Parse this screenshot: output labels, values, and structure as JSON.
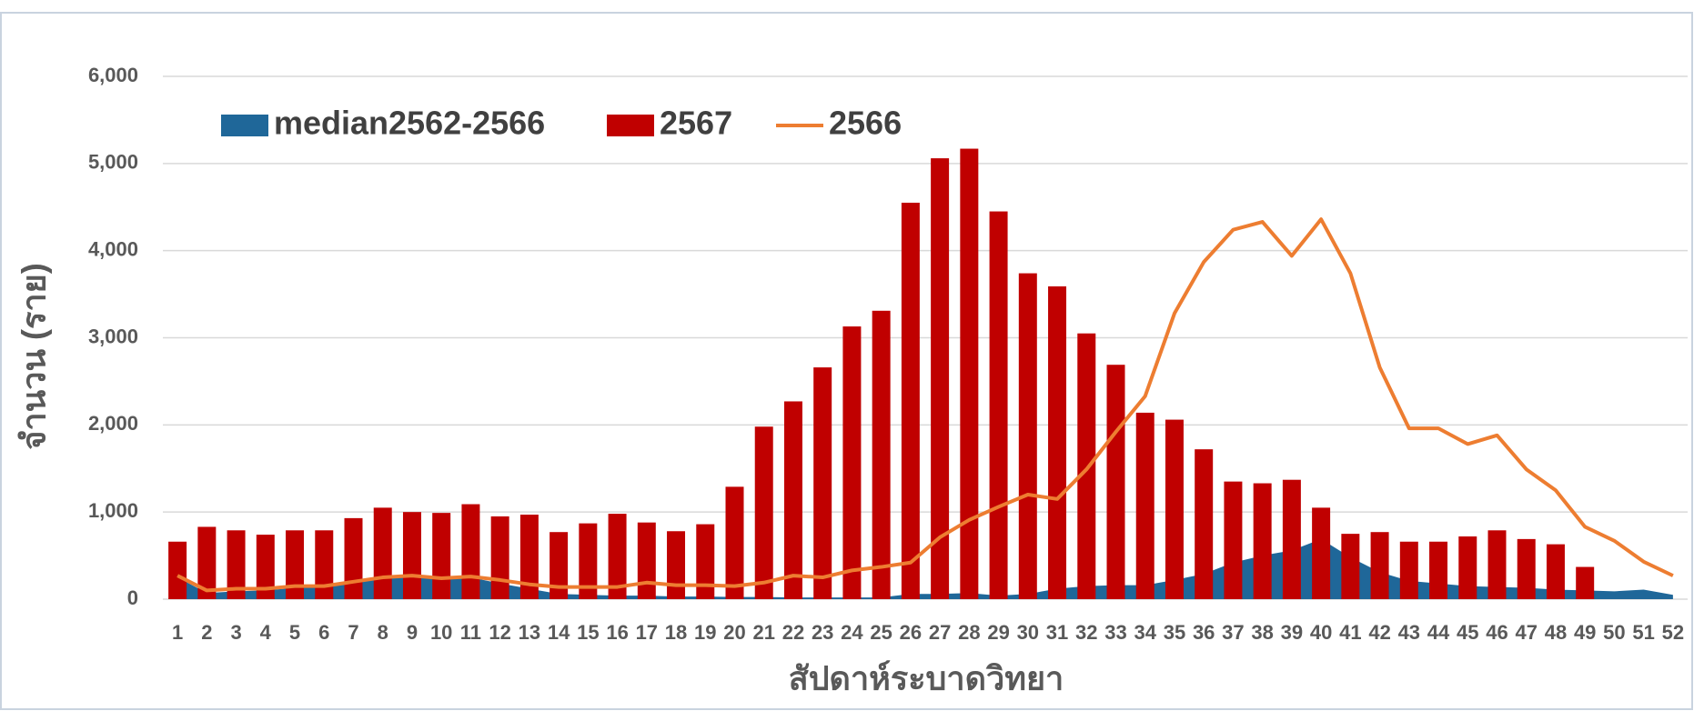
{
  "chart_data": {
    "type": "bar-area-line",
    "x_label": "สัปดาห์ระบาดวิทยา",
    "y_label": "จำนวน (ราย)",
    "categories": [
      "1",
      "2",
      "3",
      "4",
      "5",
      "6",
      "7",
      "8",
      "9",
      "10",
      "11",
      "12",
      "13",
      "14",
      "15",
      "16",
      "17",
      "18",
      "19",
      "20",
      "21",
      "22",
      "23",
      "24",
      "25",
      "26",
      "27",
      "28",
      "29",
      "30",
      "31",
      "32",
      "33",
      "34",
      "35",
      "36",
      "37",
      "38",
      "39",
      "40",
      "41",
      "42",
      "43",
      "44",
      "45",
      "46",
      "47",
      "48",
      "49",
      "50",
      "51",
      "52"
    ],
    "series": [
      {
        "name": "median2562-2566",
        "kind": "area",
        "color": "#1f6799",
        "values": [
          250,
          70,
          90,
          100,
          130,
          150,
          200,
          250,
          260,
          230,
          250,
          180,
          120,
          60,
          50,
          40,
          40,
          30,
          30,
          25,
          25,
          20,
          20,
          20,
          20,
          60,
          60,
          70,
          40,
          60,
          120,
          150,
          160,
          160,
          220,
          290,
          420,
          500,
          560,
          690,
          480,
          310,
          210,
          180,
          150,
          140,
          130,
          110,
          100,
          90,
          110,
          50
        ]
      },
      {
        "name": "2567",
        "kind": "bar",
        "color": "#c00000",
        "values": [
          660,
          830,
          790,
          740,
          790,
          790,
          930,
          1050,
          1000,
          990,
          1090,
          950,
          970,
          770,
          870,
          980,
          880,
          780,
          860,
          1290,
          1980,
          2270,
          2660,
          3130,
          3310,
          4550,
          5060,
          5170,
          4450,
          3740,
          3590,
          3050,
          2690,
          2140,
          2060,
          1720,
          1350,
          1330,
          1370,
          1050,
          750,
          770,
          660,
          660,
          720,
          790,
          690,
          630,
          370,
          null,
          null,
          null
        ]
      },
      {
        "name": "2566",
        "kind": "line",
        "color": "#ed7d31",
        "values": [
          270,
          100,
          120,
          120,
          150,
          150,
          200,
          250,
          270,
          240,
          260,
          220,
          170,
          140,
          140,
          140,
          190,
          160,
          160,
          150,
          190,
          270,
          250,
          330,
          370,
          420,
          710,
          910,
          1060,
          1200,
          1150,
          1490,
          1920,
          2330,
          3280,
          3870,
          4240,
          4330,
          3940,
          4360,
          3740,
          2660,
          1960,
          1960,
          1780,
          1880,
          1490,
          1250,
          830,
          670,
          430,
          270
        ]
      }
    ],
    "ylim": [
      0,
      6000
    ],
    "yticks": [
      {
        "value": 0,
        "label": "0"
      },
      {
        "value": 1000,
        "label": "1,000"
      },
      {
        "value": 2000,
        "label": "2,000"
      },
      {
        "value": 3000,
        "label": "3,000"
      },
      {
        "value": 4000,
        "label": "4,000"
      },
      {
        "value": 5000,
        "label": "5,000"
      },
      {
        "value": 6000,
        "label": "6,000"
      }
    ],
    "grid": true
  }
}
